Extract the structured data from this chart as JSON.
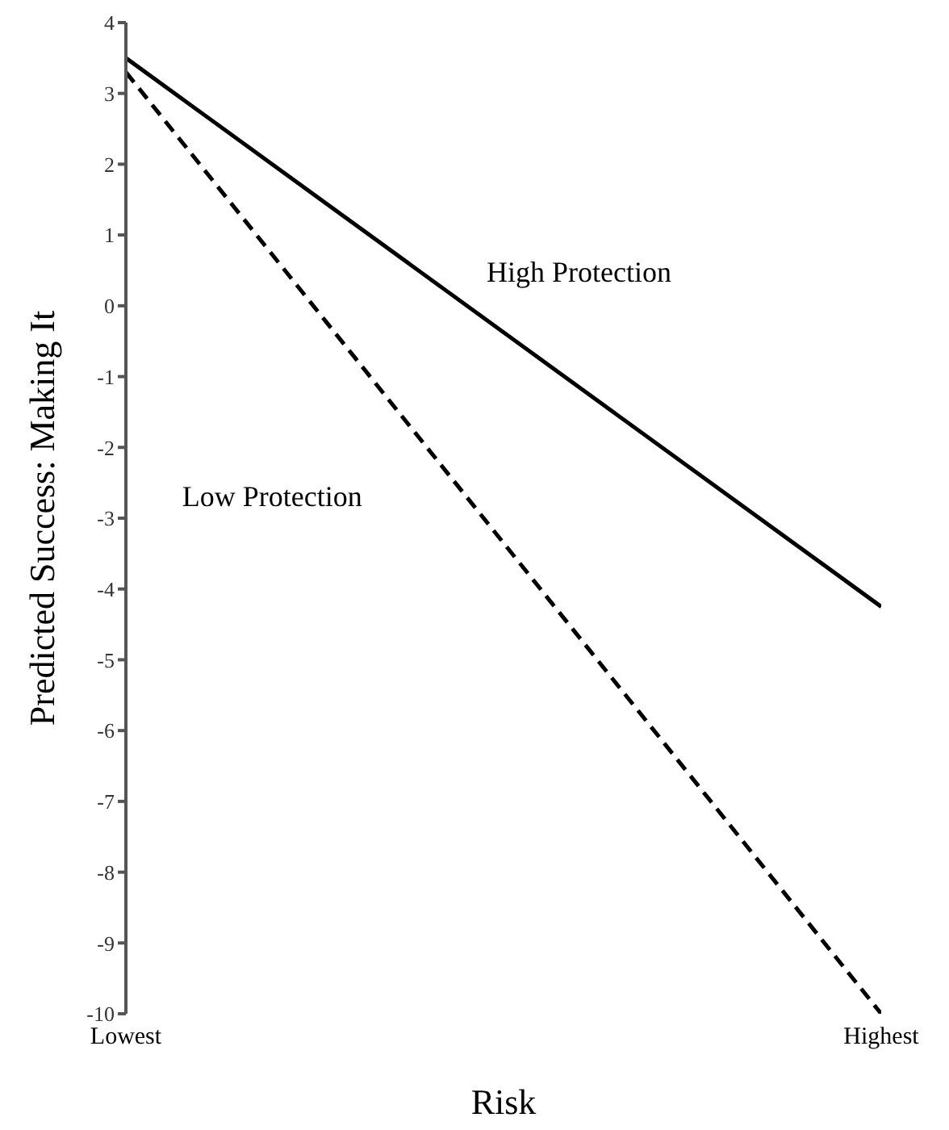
{
  "chart_data": {
    "type": "line",
    "xlabel": "Risk",
    "ylabel": "Predicted Success: Making It",
    "categories": [
      "Lowest",
      "Highest"
    ],
    "ylim": [
      -10,
      4
    ],
    "yticks": [
      -10,
      -9,
      -8,
      -7,
      -6,
      -5,
      -4,
      -3,
      -2,
      -1,
      0,
      1,
      2,
      3,
      4
    ],
    "grid": false,
    "legend": false,
    "marker": "none",
    "series": [
      {
        "name": "High Protection",
        "color": "#000000",
        "values": [
          3.5,
          -4.25
        ],
        "line_style": "solid"
      },
      {
        "name": "Low Protection",
        "color": "#000000",
        "values": [
          3.3,
          -10
        ],
        "line_style": "dashed"
      }
    ]
  }
}
